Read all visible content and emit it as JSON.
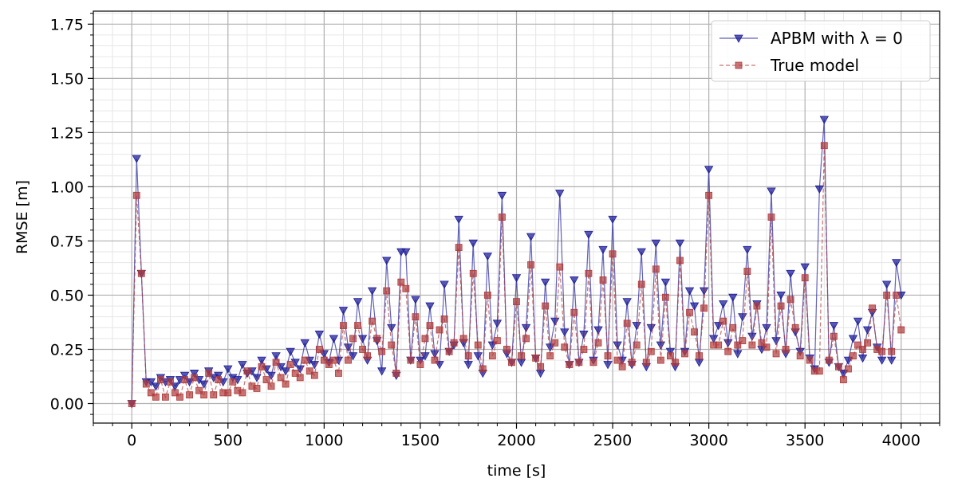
{
  "chart_data": {
    "type": "line",
    "xlabel": "time [s]",
    "ylabel": "RMSE [m]",
    "xlim": [
      -200,
      4200
    ],
    "ylim": [
      -0.09,
      1.81
    ],
    "x_ticks": [
      0,
      500,
      1000,
      1500,
      2000,
      2500,
      3000,
      3500,
      4000
    ],
    "y_ticks": [
      0.0,
      0.25,
      0.5,
      0.75,
      1.0,
      1.25,
      1.5,
      1.75
    ],
    "x_tick_labels": [
      "0",
      "500",
      "1000",
      "1500",
      "2000",
      "2500",
      "3000",
      "3500",
      "4000"
    ],
    "y_tick_labels": [
      "0.00",
      "0.25",
      "0.50",
      "0.75",
      "1.00",
      "1.25",
      "1.50",
      "1.75"
    ],
    "grid": true,
    "minor_grid": true,
    "legend_position": "top-right",
    "series": [
      {
        "name": "APBM with λ = 0",
        "color": "#1f1f9a",
        "marker": "triangle-down",
        "style": "solid",
        "x": [
          0,
          25,
          50,
          75,
          100,
          125,
          150,
          175,
          200,
          225,
          250,
          275,
          300,
          325,
          350,
          375,
          400,
          425,
          450,
          475,
          500,
          525,
          550,
          575,
          600,
          625,
          650,
          675,
          700,
          725,
          750,
          775,
          800,
          825,
          850,
          875,
          900,
          925,
          950,
          975,
          1000,
          1025,
          1050,
          1075,
          1100,
          1125,
          1150,
          1175,
          1200,
          1225,
          1250,
          1275,
          1300,
          1325,
          1350,
          1375,
          1400,
          1425,
          1450,
          1475,
          1500,
          1525,
          1550,
          1575,
          1600,
          1625,
          1650,
          1675,
          1700,
          1725,
          1750,
          1775,
          1800,
          1825,
          1850,
          1875,
          1900,
          1925,
          1950,
          1975,
          2000,
          2025,
          2050,
          2075,
          2100,
          2125,
          2150,
          2175,
          2200,
          2225,
          2250,
          2275,
          2300,
          2325,
          2350,
          2375,
          2400,
          2425,
          2450,
          2475,
          2500,
          2525,
          2550,
          2575,
          2600,
          2625,
          2650,
          2675,
          2700,
          2725,
          2750,
          2775,
          2800,
          2825,
          2850,
          2875,
          2900,
          2925,
          2950,
          2975,
          3000,
          3025,
          3050,
          3075,
          3100,
          3125,
          3150,
          3175,
          3200,
          3225,
          3250,
          3275,
          3300,
          3325,
          3350,
          3375,
          3400,
          3425,
          3450,
          3475,
          3500,
          3525,
          3550,
          3575,
          3600,
          3625,
          3650,
          3675,
          3700,
          3725,
          3750,
          3775,
          3800,
          3825,
          3850,
          3875,
          3900,
          3925,
          3950,
          3975,
          4000
        ],
        "y": [
          0.0,
          1.13,
          0.6,
          0.1,
          0.1,
          0.08,
          0.12,
          0.1,
          0.11,
          0.08,
          0.11,
          0.13,
          0.1,
          0.14,
          0.11,
          0.09,
          0.15,
          0.12,
          0.13,
          0.1,
          0.16,
          0.12,
          0.11,
          0.18,
          0.14,
          0.15,
          0.12,
          0.2,
          0.16,
          0.13,
          0.22,
          0.17,
          0.15,
          0.24,
          0.19,
          0.16,
          0.28,
          0.2,
          0.18,
          0.32,
          0.23,
          0.19,
          0.3,
          0.2,
          0.43,
          0.26,
          0.22,
          0.47,
          0.3,
          0.2,
          0.52,
          0.29,
          0.15,
          0.66,
          0.35,
          0.13,
          0.7,
          0.7,
          0.2,
          0.48,
          0.2,
          0.22,
          0.45,
          0.23,
          0.18,
          0.55,
          0.24,
          0.27,
          0.85,
          0.28,
          0.18,
          0.74,
          0.22,
          0.14,
          0.68,
          0.27,
          0.37,
          0.96,
          0.23,
          0.19,
          0.58,
          0.19,
          0.35,
          0.77,
          0.21,
          0.14,
          0.56,
          0.26,
          0.38,
          0.97,
          0.33,
          0.18,
          0.57,
          0.19,
          0.32,
          0.78,
          0.2,
          0.34,
          0.71,
          0.18,
          0.85,
          0.27,
          0.2,
          0.47,
          0.18,
          0.36,
          0.7,
          0.17,
          0.35,
          0.74,
          0.27,
          0.56,
          0.24,
          0.17,
          0.74,
          0.24,
          0.52,
          0.45,
          0.19,
          0.52,
          1.08,
          0.3,
          0.36,
          0.46,
          0.28,
          0.49,
          0.23,
          0.4,
          0.71,
          0.31,
          0.46,
          0.25,
          0.35,
          0.98,
          0.29,
          0.5,
          0.23,
          0.6,
          0.33,
          0.24,
          0.63,
          0.21,
          0.16,
          0.99,
          1.31,
          0.19,
          0.36,
          0.17,
          0.14,
          0.2,
          0.3,
          0.38,
          0.21,
          0.34,
          0.42,
          0.26,
          0.2,
          0.55,
          0.2,
          0.65,
          0.5
        ]
      },
      {
        "name": "True model",
        "color": "#b03a3a",
        "marker": "square",
        "style": "dashed",
        "x": [
          0,
          25,
          50,
          75,
          100,
          125,
          150,
          175,
          200,
          225,
          250,
          275,
          300,
          325,
          350,
          375,
          400,
          425,
          450,
          475,
          500,
          525,
          550,
          575,
          600,
          625,
          650,
          675,
          700,
          725,
          750,
          775,
          800,
          825,
          850,
          875,
          900,
          925,
          950,
          975,
          1000,
          1025,
          1050,
          1075,
          1100,
          1125,
          1150,
          1175,
          1200,
          1225,
          1250,
          1275,
          1300,
          1325,
          1350,
          1375,
          1400,
          1425,
          1450,
          1475,
          1500,
          1525,
          1550,
          1575,
          1600,
          1625,
          1650,
          1675,
          1700,
          1725,
          1750,
          1775,
          1800,
          1825,
          1850,
          1875,
          1900,
          1925,
          1950,
          1975,
          2000,
          2025,
          2050,
          2075,
          2100,
          2125,
          2150,
          2175,
          2200,
          2225,
          2250,
          2275,
          2300,
          2325,
          2350,
          2375,
          2400,
          2425,
          2450,
          2475,
          2500,
          2525,
          2550,
          2575,
          2600,
          2625,
          2650,
          2675,
          2700,
          2725,
          2750,
          2775,
          2800,
          2825,
          2850,
          2875,
          2900,
          2925,
          2950,
          2975,
          3000,
          3025,
          3050,
          3075,
          3100,
          3125,
          3150,
          3175,
          3200,
          3225,
          3250,
          3275,
          3300,
          3325,
          3350,
          3375,
          3400,
          3425,
          3450,
          3475,
          3500,
          3525,
          3550,
          3575,
          3600,
          3625,
          3650,
          3675,
          3700,
          3725,
          3750,
          3775,
          3800,
          3825,
          3850,
          3875,
          3900,
          3925,
          3950,
          3975,
          4000
        ],
        "y": [
          0.0,
          0.96,
          0.6,
          0.09,
          0.05,
          0.03,
          0.11,
          0.03,
          0.1,
          0.05,
          0.03,
          0.11,
          0.04,
          0.12,
          0.06,
          0.04,
          0.14,
          0.04,
          0.11,
          0.05,
          0.05,
          0.1,
          0.06,
          0.05,
          0.15,
          0.08,
          0.07,
          0.17,
          0.11,
          0.08,
          0.19,
          0.12,
          0.09,
          0.18,
          0.14,
          0.12,
          0.2,
          0.15,
          0.13,
          0.25,
          0.2,
          0.18,
          0.2,
          0.14,
          0.36,
          0.2,
          0.3,
          0.36,
          0.25,
          0.22,
          0.38,
          0.3,
          0.24,
          0.52,
          0.27,
          0.14,
          0.56,
          0.53,
          0.2,
          0.4,
          0.18,
          0.3,
          0.36,
          0.2,
          0.34,
          0.39,
          0.24,
          0.28,
          0.72,
          0.3,
          0.22,
          0.6,
          0.27,
          0.16,
          0.5,
          0.22,
          0.29,
          0.86,
          0.25,
          0.19,
          0.47,
          0.22,
          0.3,
          0.64,
          0.21,
          0.17,
          0.45,
          0.22,
          0.28,
          0.63,
          0.26,
          0.18,
          0.42,
          0.19,
          0.25,
          0.6,
          0.19,
          0.28,
          0.57,
          0.22,
          0.69,
          0.2,
          0.17,
          0.37,
          0.19,
          0.27,
          0.55,
          0.19,
          0.24,
          0.62,
          0.2,
          0.49,
          0.22,
          0.19,
          0.66,
          0.23,
          0.42,
          0.33,
          0.22,
          0.44,
          0.96,
          0.27,
          0.27,
          0.38,
          0.24,
          0.35,
          0.27,
          0.29,
          0.61,
          0.27,
          0.45,
          0.28,
          0.26,
          0.86,
          0.23,
          0.45,
          0.25,
          0.48,
          0.35,
          0.22,
          0.58,
          0.2,
          0.15,
          0.15,
          1.19,
          0.2,
          0.31,
          0.17,
          0.11,
          0.16,
          0.22,
          0.27,
          0.25,
          0.28,
          0.44,
          0.25,
          0.24,
          0.5,
          0.24,
          0.5,
          0.34
        ]
      }
    ]
  }
}
